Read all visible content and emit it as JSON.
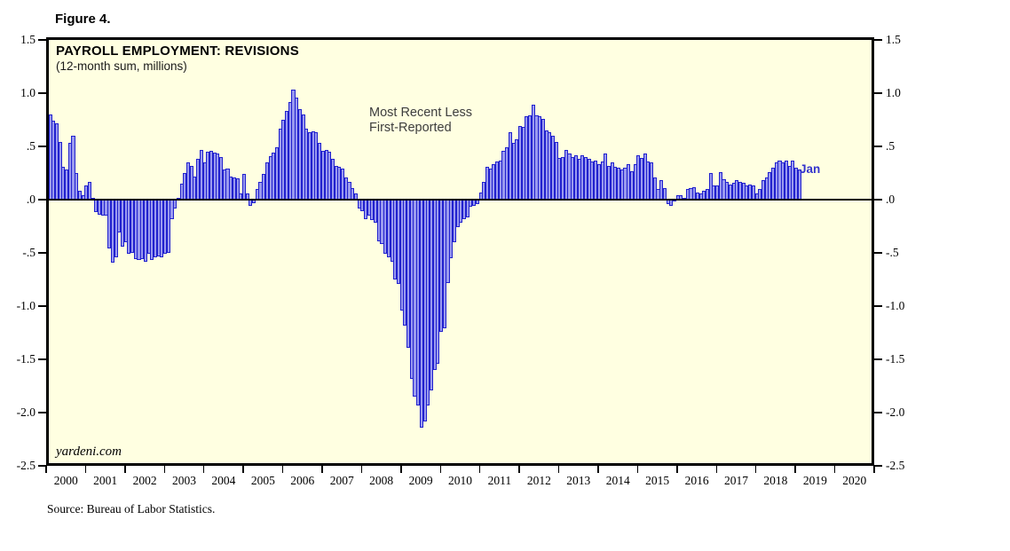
{
  "figure_label": "Figure 4.",
  "chart": {
    "title": "PAYROLL EMPLOYMENT: REVISIONS",
    "subtitle": "(12-month sum, millions)",
    "annotation_line1": "Most Recent Less",
    "annotation_line2": "First-Reported",
    "last_point_label": "Jan",
    "watermark": "yardeni.com",
    "source_note": "Source: Bureau of Labor Statistics.",
    "colors": {
      "plot_background": "#FFFFE1",
      "bar_fill": "#9A9AEF",
      "bar_border": "#2121CE",
      "axis": "#000000",
      "last_point_label": "#3333CC",
      "annotation_text": "#3D3D3D"
    }
  },
  "chart_data": {
    "type": "bar",
    "title": "PAYROLL EMPLOYMENT: REVISIONS",
    "subtitle": "(12-month sum, millions)",
    "series_name": "Payroll employment revisions: most recent less first-reported",
    "unit": "millions",
    "frequency": "monthly",
    "start_month": "2000-01",
    "end_month": "2019-01",
    "ylim": [
      -2.5,
      1.5
    ],
    "ytick_values": [
      1.5,
      1.0,
      0.5,
      0.0,
      -0.5,
      -1.0,
      -1.5,
      -2.0,
      -2.5
    ],
    "ytick_labels": [
      "1.5",
      "1.0",
      ".5",
      ".0",
      "-.5",
      "-1.0",
      "-1.5",
      "-2.0",
      "-2.5"
    ],
    "x_year_labels": [
      "2000",
      "2001",
      "2002",
      "2003",
      "2004",
      "2005",
      "2006",
      "2007",
      "2008",
      "2009",
      "2010",
      "2011",
      "2012",
      "2013",
      "2014",
      "2015",
      "2016",
      "2017",
      "2018",
      "2019",
      "2020"
    ],
    "x_axis_span_years": 21,
    "grid": false,
    "legend": "none",
    "values": [
      0.8,
      0.74,
      0.72,
      0.54,
      0.31,
      0.28,
      0.53,
      0.6,
      0.25,
      0.08,
      0.04,
      0.13,
      0.17,
      0.02,
      -0.12,
      -0.14,
      -0.15,
      -0.15,
      -0.46,
      -0.59,
      -0.54,
      -0.31,
      -0.44,
      -0.4,
      -0.51,
      -0.5,
      -0.56,
      -0.57,
      -0.56,
      -0.58,
      -0.51,
      -0.57,
      -0.54,
      -0.53,
      -0.54,
      -0.51,
      -0.5,
      -0.18,
      -0.08,
      0.02,
      0.15,
      0.25,
      0.35,
      0.32,
      0.22,
      0.38,
      0.47,
      0.35,
      0.45,
      0.46,
      0.44,
      0.43,
      0.4,
      0.28,
      0.29,
      0.22,
      0.21,
      0.2,
      0.06,
      0.24,
      0.06,
      -0.06,
      -0.03,
      0.1,
      0.17,
      0.24,
      0.35,
      0.41,
      0.44,
      0.49,
      0.67,
      0.75,
      0.83,
      0.92,
      1.03,
      0.96,
      0.85,
      0.8,
      0.67,
      0.63,
      0.64,
      0.63,
      0.53,
      0.46,
      0.47,
      0.45,
      0.38,
      0.32,
      0.31,
      0.29,
      0.21,
      0.17,
      0.11,
      0.06,
      -0.08,
      -0.11,
      -0.18,
      -0.15,
      -0.19,
      -0.22,
      -0.39,
      -0.42,
      -0.51,
      -0.54,
      -0.58,
      -0.75,
      -0.79,
      -1.04,
      -1.18,
      -1.39,
      -1.68,
      -1.85,
      -1.93,
      -2.14,
      -2.08,
      -1.93,
      -1.79,
      -1.6,
      -1.54,
      -1.24,
      -1.21,
      -0.78,
      -0.55,
      -0.4,
      -0.26,
      -0.22,
      -0.18,
      -0.17,
      -0.07,
      -0.06,
      -0.04,
      0.07,
      0.17,
      0.31,
      0.29,
      0.33,
      0.36,
      0.37,
      0.46,
      0.49,
      0.63,
      0.53,
      0.57,
      0.69,
      0.68,
      0.78,
      0.79,
      0.89,
      0.79,
      0.78,
      0.76,
      0.65,
      0.63,
      0.6,
      0.54,
      0.39,
      0.4,
      0.47,
      0.43,
      0.4,
      0.42,
      0.38,
      0.42,
      0.4,
      0.38,
      0.36,
      0.37,
      0.33,
      0.36,
      0.43,
      0.32,
      0.35,
      0.31,
      0.3,
      0.28,
      0.3,
      0.33,
      0.27,
      0.33,
      0.42,
      0.39,
      0.43,
      0.36,
      0.35,
      0.21,
      0.1,
      0.18,
      0.11,
      -0.04,
      -0.06,
      -0.02,
      0.04,
      0.04,
      0.02,
      0.1,
      0.11,
      0.12,
      0.07,
      0.06,
      0.08,
      0.1,
      0.25,
      0.13,
      0.13,
      0.26,
      0.19,
      0.17,
      0.14,
      0.16,
      0.18,
      0.17,
      0.16,
      0.13,
      0.14,
      0.13,
      0.06,
      0.1,
      0.18,
      0.21,
      0.26,
      0.3,
      0.35,
      0.37,
      0.35,
      0.37,
      0.32,
      0.37,
      0.3,
      0.28
    ]
  }
}
